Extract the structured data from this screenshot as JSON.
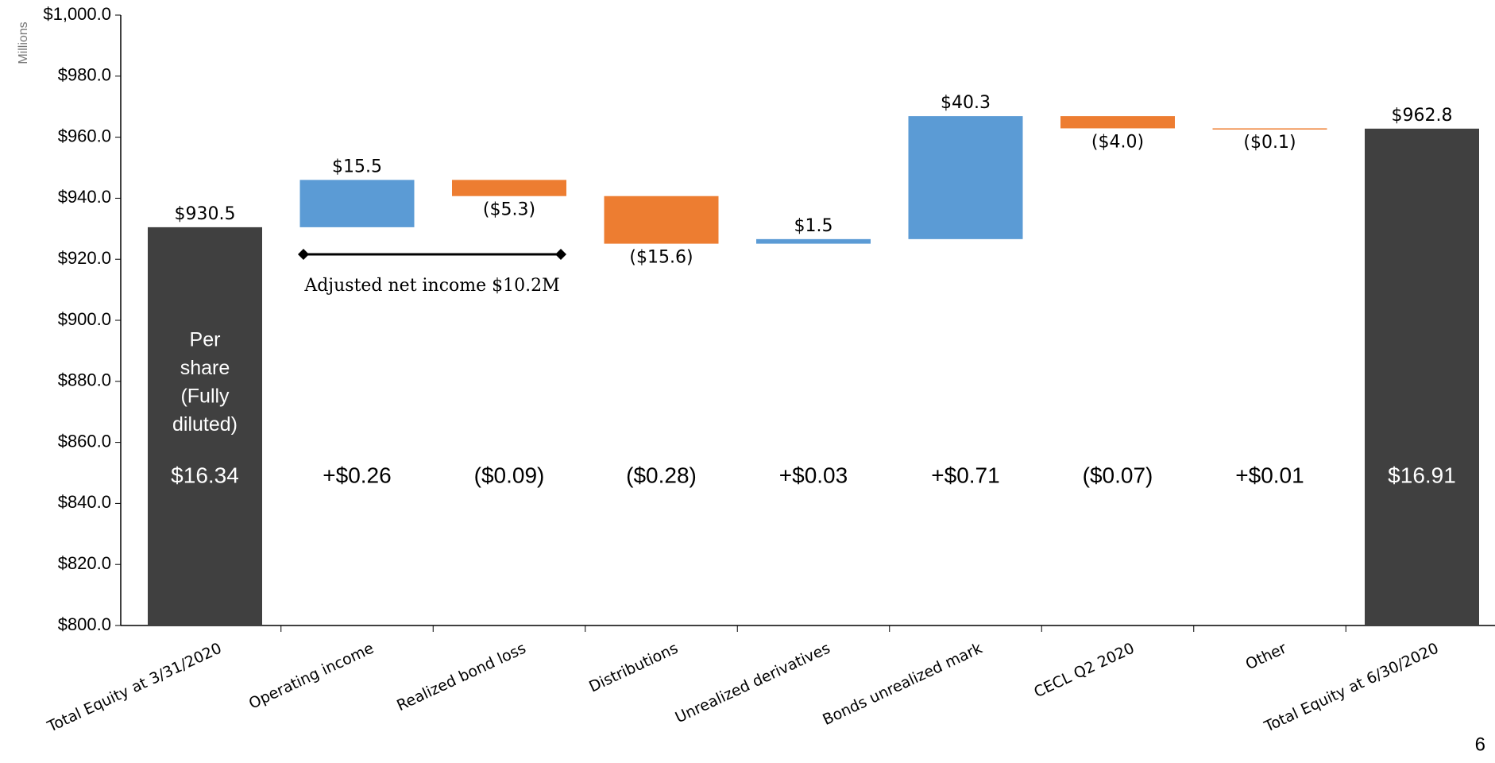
{
  "chart_data": {
    "type": "waterfall",
    "y_label": "Millions",
    "categories": [
      "Total Equity at 3/31/2020",
      "Operating income",
      "Realized bond loss",
      "Distributions",
      "Unrealized derivatives",
      "Bonds unrealized mark",
      "CECL Q2 2020",
      "Other",
      "Total Equity at 6/30/2020"
    ],
    "values": [
      930.5,
      15.5,
      -5.3,
      -15.6,
      1.5,
      40.3,
      -4.0,
      -0.1,
      962.8
    ],
    "value_labels": [
      "$930.5",
      "$15.5",
      "($5.3)",
      "($15.6)",
      "$1.5",
      "$40.3",
      "($4.0)",
      "($0.1)",
      "$962.8"
    ],
    "totals": [
      0,
      8
    ],
    "colors": {
      "total": "#404040",
      "increase": "#5b9bd5",
      "decrease": "#ed7d31"
    },
    "per_share_heading": [
      "Per",
      "share",
      "(Fully",
      "diluted)"
    ],
    "per_share": [
      "$16.34",
      "+$0.26",
      "($0.09)",
      "($0.28)",
      "+$0.03",
      "+$0.71",
      "($0.07)",
      "+$0.01",
      "$16.91"
    ],
    "annotation": "Adjusted net income $10.2M",
    "ylim": [
      800,
      1000
    ],
    "yticks": [
      {
        "value": 800,
        "label": "$800.0"
      },
      {
        "value": 820,
        "label": "$820.0"
      },
      {
        "value": 840,
        "label": "$840.0"
      },
      {
        "value": 860,
        "label": "$860.0"
      },
      {
        "value": 880,
        "label": "$880.0"
      },
      {
        "value": 900,
        "label": "$900.0"
      },
      {
        "value": 920,
        "label": "$920.0"
      },
      {
        "value": 940,
        "label": "$940.0"
      },
      {
        "value": 960,
        "label": "$960.0"
      },
      {
        "value": 980,
        "label": "$980.0"
      },
      {
        "value": 1000,
        "label": "$1,000.0"
      }
    ],
    "page_number": "6"
  }
}
